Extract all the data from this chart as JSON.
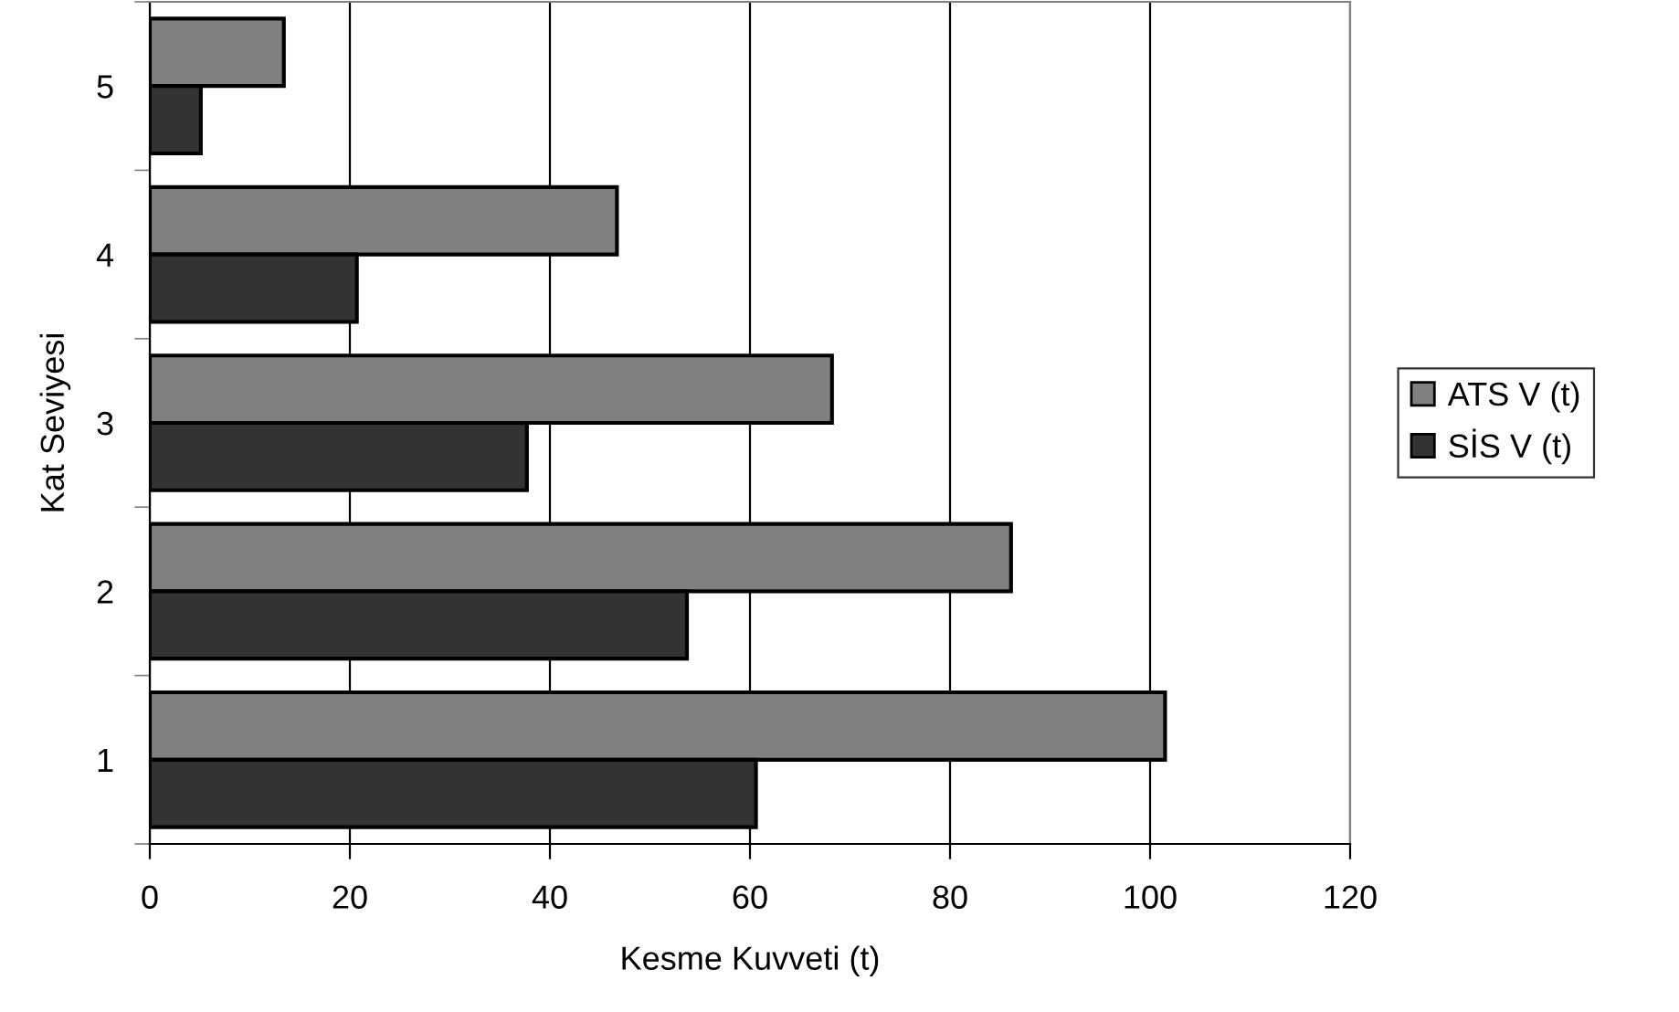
{
  "chart_data": {
    "type": "bar",
    "orientation": "horizontal",
    "xlabel": "Kesme Kuvveti (t)",
    "ylabel": "Kat Seviyesi",
    "categories": [
      "5",
      "4",
      "3",
      "2",
      "1"
    ],
    "series": [
      {
        "name": "ATS V (t)",
        "color": "#808080",
        "values": [
          13.4,
          46.7,
          68.2,
          86.1,
          101.5
        ]
      },
      {
        "name": "SİS V (t)",
        "color": "#333333",
        "values": [
          5.1,
          20.7,
          37.7,
          53.7,
          60.6
        ]
      }
    ],
    "xlim": [
      0,
      120
    ],
    "xticks": [
      0,
      20,
      40,
      60,
      80,
      100,
      120
    ],
    "grid": "x",
    "legend": "right"
  }
}
